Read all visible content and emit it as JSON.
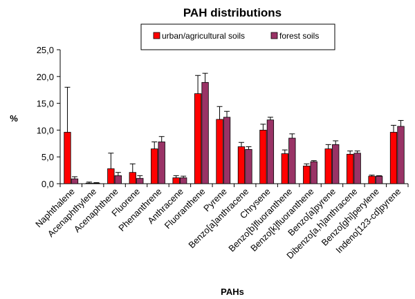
{
  "chart_data": {
    "type": "bar",
    "title": "PAH distributions",
    "xlabel": "PAHs",
    "ylabel": "%",
    "ylim": [
      0,
      25
    ],
    "yticks": [
      "0,0",
      "5,0",
      "10,0",
      "15,0",
      "20,0",
      "25,0"
    ],
    "legend_position": "top-right",
    "categories": [
      "Naphthalene",
      "Acenaphthylene",
      "Acenaphthene",
      "Fluorene",
      "Phenanthrene",
      "Anthracene",
      "Fluoranthene",
      "Pyrene",
      "Benzo[a]anthracene",
      "Chrysene",
      "Benzo[b]fluoranthene",
      "Benzo[k]fluoranthene",
      "Benzo[a]pyrene",
      "Dibenzo[a,h]anthracene",
      "Benzo[ghi]perylene",
      "Indeno[123-cd]pyrene"
    ],
    "series": [
      {
        "name": "urban/agricultural soils",
        "color": "#ff0000",
        "values": [
          9.6,
          0.1,
          2.8,
          2.1,
          6.5,
          1.1,
          16.8,
          12.0,
          6.9,
          10.0,
          5.6,
          3.3,
          6.5,
          5.5,
          1.4,
          9.6
        ],
        "errors": [
          8.4,
          0.2,
          2.9,
          1.6,
          1.3,
          0.4,
          3.4,
          2.4,
          0.8,
          1.1,
          0.7,
          0.4,
          0.8,
          0.6,
          0.2,
          1.3
        ]
      },
      {
        "name": "forest soils",
        "color": "#993366",
        "values": [
          0.9,
          0.1,
          1.5,
          1.0,
          7.8,
          1.1,
          18.9,
          12.4,
          6.4,
          11.9,
          8.5,
          4.1,
          7.3,
          5.7,
          1.4,
          10.7
        ],
        "errors": [
          0.4,
          0.1,
          0.6,
          0.5,
          1.0,
          0.3,
          1.7,
          1.1,
          0.5,
          0.5,
          0.8,
          0.2,
          0.7,
          0.4,
          0.1,
          1.1
        ]
      }
    ]
  }
}
